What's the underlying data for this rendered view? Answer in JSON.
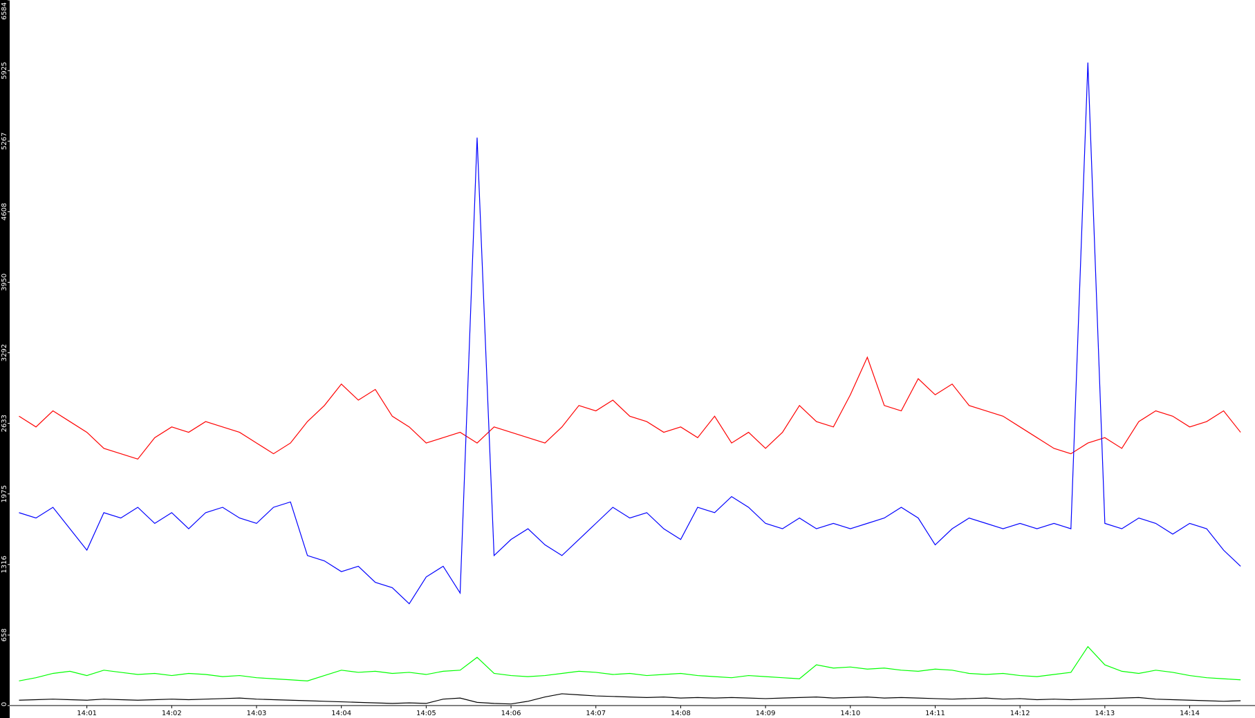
{
  "chart_data": {
    "type": "line",
    "x": [
      0.2,
      0.4,
      0.6,
      0.8,
      1.0,
      1.2,
      1.4,
      1.6,
      1.8,
      2.0,
      2.2,
      2.4,
      2.6,
      2.8,
      3.0,
      3.2,
      3.4,
      3.6,
      3.8,
      4.0,
      4.2,
      4.4,
      4.6,
      4.8,
      5.0,
      5.2,
      5.4,
      5.6,
      5.8,
      6.0,
      6.2,
      6.4,
      6.6,
      6.8,
      7.0,
      7.2,
      7.4,
      7.6,
      7.8,
      8.0,
      8.2,
      8.4,
      8.6,
      8.8,
      9.0,
      9.2,
      9.4,
      9.6,
      9.8,
      10.0,
      10.2,
      10.4,
      10.6,
      10.8,
      11.0,
      11.2,
      11.4,
      11.6,
      11.8,
      12.0,
      12.2,
      12.4,
      12.6,
      12.8,
      13.0,
      13.2,
      13.4,
      13.6,
      13.8,
      14.0,
      14.2,
      14.4,
      14.6
    ],
    "series": [
      {
        "color": "#ff0000",
        "values": [
          2700,
          2600,
          2750,
          2650,
          2550,
          2400,
          2350,
          2300,
          2500,
          2600,
          2550,
          2650,
          2600,
          2550,
          2450,
          2350,
          2450,
          2650,
          2800,
          3000,
          2850,
          2950,
          2700,
          2600,
          2450,
          2500,
          2550,
          2450,
          2600,
          2550,
          2500,
          2450,
          2600,
          2800,
          2750,
          2850,
          2700,
          2650,
          2550,
          2600,
          2500,
          2700,
          2450,
          2550,
          2400,
          2550,
          2800,
          2650,
          2600,
          2900,
          3250,
          2800,
          2750,
          3050,
          2900,
          3000,
          2800,
          2750,
          2700,
          2600,
          2500,
          2400,
          2350,
          2450,
          2500,
          2400,
          2650,
          2750,
          2700,
          2600,
          2650,
          2750,
          2550
        ]
      },
      {
        "color": "#0000ff",
        "values": [
          1800,
          1750,
          1850,
          1650,
          1450,
          1800,
          1750,
          1850,
          1700,
          1800,
          1650,
          1800,
          1850,
          1750,
          1700,
          1850,
          1900,
          1400,
          1350,
          1250,
          1300,
          1150,
          1100,
          950,
          1200,
          1300,
          1050,
          5300,
          1400,
          1550,
          1650,
          1500,
          1400,
          1550,
          1700,
          1850,
          1750,
          1800,
          1650,
          1550,
          1850,
          1800,
          1950,
          1850,
          1700,
          1650,
          1750,
          1650,
          1700,
          1650,
          1700,
          1750,
          1850,
          1750,
          1500,
          1650,
          1750,
          1700,
          1650,
          1700,
          1650,
          1700,
          1650,
          6000,
          1700,
          1650,
          1750,
          1700,
          1600,
          1700,
          1650,
          1450,
          1300
        ]
      },
      {
        "color": "#00ff00",
        "values": [
          230,
          260,
          300,
          320,
          280,
          330,
          310,
          290,
          300,
          280,
          300,
          290,
          270,
          280,
          260,
          250,
          240,
          230,
          280,
          330,
          310,
          320,
          300,
          310,
          290,
          320,
          330,
          450,
          300,
          280,
          270,
          280,
          300,
          320,
          310,
          290,
          300,
          280,
          290,
          300,
          280,
          270,
          260,
          280,
          270,
          260,
          250,
          380,
          350,
          360,
          340,
          350,
          330,
          320,
          340,
          330,
          300,
          290,
          300,
          280,
          270,
          290,
          310,
          550,
          380,
          320,
          300,
          330,
          310,
          280,
          260,
          250,
          240
        ]
      },
      {
        "color": "#000000",
        "values": [
          50,
          55,
          60,
          55,
          50,
          60,
          55,
          50,
          55,
          60,
          55,
          60,
          65,
          70,
          60,
          55,
          50,
          45,
          40,
          35,
          30,
          25,
          20,
          25,
          20,
          60,
          70,
          30,
          20,
          15,
          40,
          80,
          110,
          100,
          90,
          85,
          80,
          75,
          80,
          70,
          75,
          70,
          75,
          70,
          65,
          70,
          75,
          80,
          70,
          75,
          80,
          70,
          75,
          70,
          65,
          60,
          65,
          70,
          60,
          65,
          55,
          60,
          55,
          60,
          65,
          70,
          75,
          60,
          55,
          50,
          45,
          40,
          45
        ]
      }
    ],
    "xlim": [
      0.09,
      14.77
    ],
    "xticks": [
      {
        "value": 1,
        "label": "14:01"
      },
      {
        "value": 2,
        "label": "14:02"
      },
      {
        "value": 3,
        "label": "14:03"
      },
      {
        "value": 4,
        "label": "14:04"
      },
      {
        "value": 5,
        "label": "14:05"
      },
      {
        "value": 6,
        "label": "14:06"
      },
      {
        "value": 7,
        "label": "14:07"
      },
      {
        "value": 8,
        "label": "14:08"
      },
      {
        "value": 9,
        "label": "14:09"
      },
      {
        "value": 10,
        "label": "14:10"
      },
      {
        "value": 11,
        "label": "14:11"
      },
      {
        "value": 12,
        "label": "14:12"
      },
      {
        "value": 13,
        "label": "14:13"
      },
      {
        "value": 14,
        "label": "14:14"
      }
    ],
    "ylim": [
      0,
      6584
    ],
    "yticks": [
      0,
      658,
      1316,
      1975,
      2633,
      3292,
      3950,
      4608,
      5267,
      5925,
      6584
    ],
    "grid": false
  }
}
